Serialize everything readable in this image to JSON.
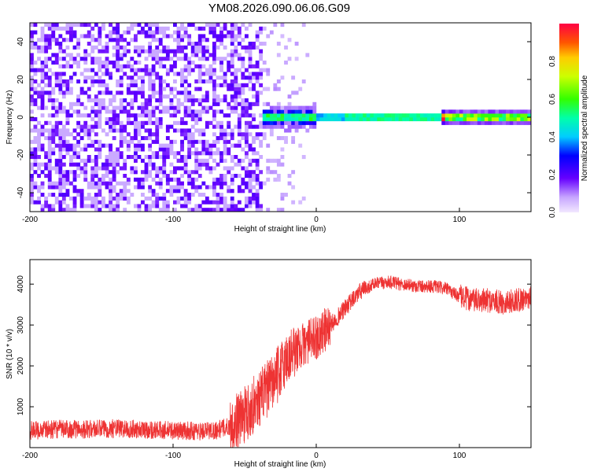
{
  "title": "YM08.2026.090.06.06.G09",
  "colors": {
    "snr_line": "#ee3333",
    "frame": "#000000",
    "background": "#ffffff"
  },
  "chart_data": [
    {
      "type": "heatmap",
      "name": "spectrogram",
      "xlabel": "Height of straight line (km)",
      "ylabel": "Frequency (Hz)",
      "xlim": [
        -200,
        150
      ],
      "ylim": [
        -50,
        50
      ],
      "xticks": [
        -200,
        -100,
        0,
        100
      ],
      "yticks": [
        -40,
        -20,
        0,
        20,
        40
      ],
      "colorbar": {
        "label": "Normalized spectral amplitude",
        "range": [
          0.0,
          1.0
        ],
        "ticks": [
          0.0,
          0.2,
          0.4,
          0.6,
          0.8
        ],
        "colormap": "rainbow (violet to red)"
      },
      "features": [
        {
          "description": "diffuse low-amplitude noise across all frequencies",
          "x_range": [
            -200,
            -38
          ],
          "amplitude": 0.15
        },
        {
          "description": "sparse fading noise",
          "x_range": [
            -38,
            0
          ],
          "amplitude": 0.05
        },
        {
          "description": "signal line near 0 Hz",
          "x_range": [
            -38,
            150
          ],
          "frequency_hz": 0,
          "peak_amplitude": 1.0
        }
      ]
    },
    {
      "type": "line",
      "name": "snr",
      "xlabel": "Height of straight line (km)",
      "ylabel": "SNR (10 * v/v)",
      "xlim": [
        -200,
        150
      ],
      "ylim": [
        0,
        4600
      ],
      "xticks": [
        -200,
        -100,
        0,
        100
      ],
      "yticks": [
        1000,
        2000,
        3000,
        4000
      ],
      "series": [
        {
          "name": "SNR",
          "x": [
            -200,
            -180,
            -160,
            -140,
            -120,
            -100,
            -80,
            -70,
            -60,
            -50,
            -40,
            -30,
            -20,
            -10,
            0,
            10,
            20,
            30,
            40,
            50,
            60,
            70,
            80,
            90,
            100,
            110,
            120,
            130,
            140,
            150
          ],
          "values": [
            420,
            450,
            450,
            470,
            440,
            420,
            400,
            430,
            520,
            800,
            1200,
            1600,
            2200,
            2500,
            2700,
            3000,
            3400,
            3800,
            4000,
            4050,
            4000,
            3950,
            3950,
            3900,
            3700,
            3600,
            3600,
            3550,
            3600,
            3700
          ]
        }
      ]
    }
  ]
}
